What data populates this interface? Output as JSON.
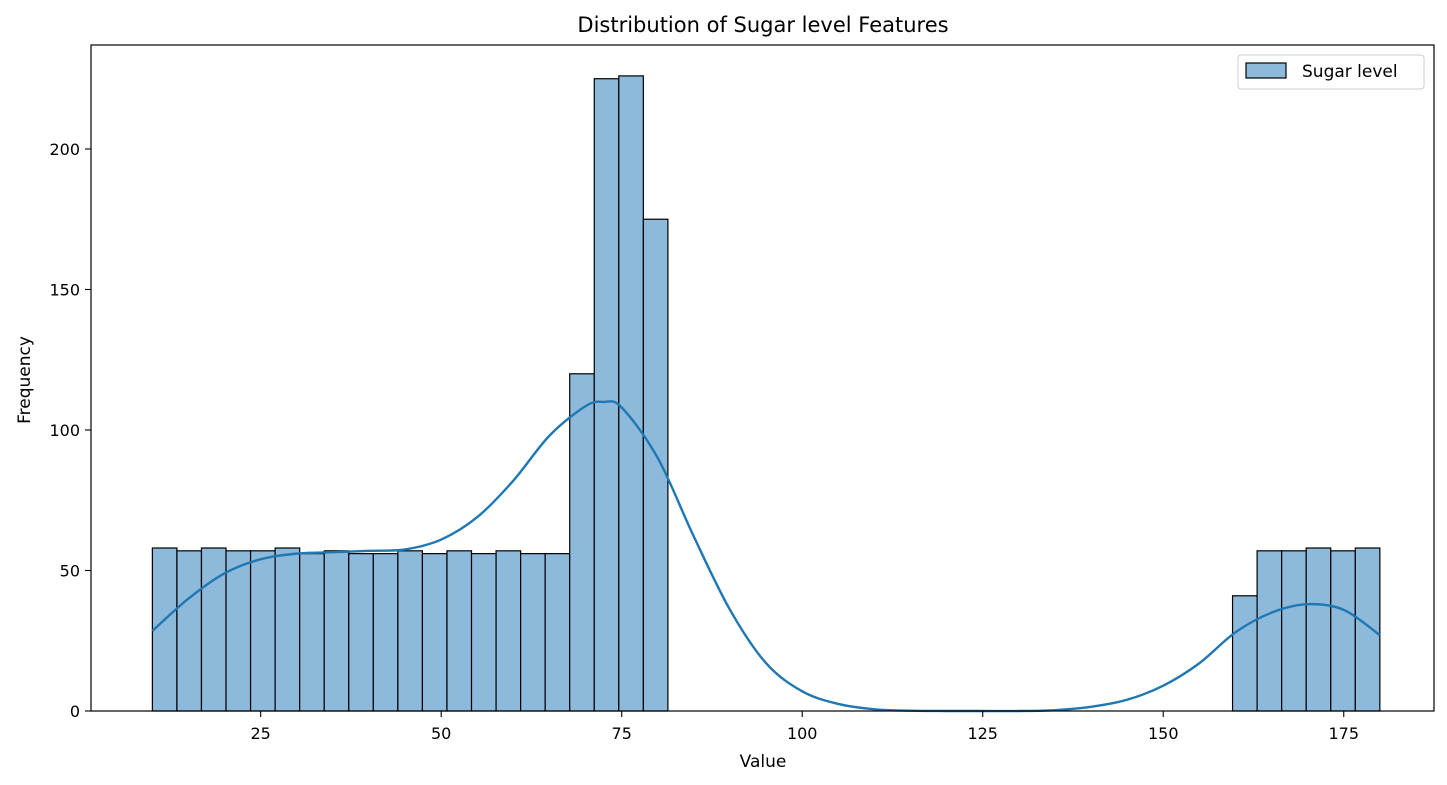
{
  "chart_data": {
    "type": "bar",
    "subtype": "histogram",
    "title": "Distribution of Sugar level Features",
    "xlabel": "Value",
    "ylabel": "Frequency",
    "xlim": [
      1.5,
      187.5
    ],
    "ylim": [
      0,
      237
    ],
    "xticks": [
      25,
      50,
      75,
      100,
      125,
      150,
      175
    ],
    "yticks": [
      0,
      50,
      100,
      150,
      200
    ],
    "grid": false,
    "legend_position": "top-right",
    "colors": {
      "bar_fill": "#8db9da",
      "bar_edge": "#000000",
      "kde_line": "#1f77b4"
    },
    "series": [
      {
        "name": "Sugar level",
        "bins": [
          {
            "x0": 10.0,
            "x1": 13.4,
            "count": 58
          },
          {
            "x0": 13.4,
            "x1": 16.8,
            "count": 57
          },
          {
            "x0": 16.8,
            "x1": 20.2,
            "count": 58
          },
          {
            "x0": 20.2,
            "x1": 23.6,
            "count": 57
          },
          {
            "x0": 23.6,
            "x1": 27.0,
            "count": 57
          },
          {
            "x0": 27.0,
            "x1": 30.4,
            "count": 58
          },
          {
            "x0": 30.4,
            "x1": 33.8,
            "count": 56
          },
          {
            "x0": 33.8,
            "x1": 37.2,
            "count": 57
          },
          {
            "x0": 37.2,
            "x1": 40.6,
            "count": 56
          },
          {
            "x0": 40.6,
            "x1": 44.0,
            "count": 56
          },
          {
            "x0": 44.0,
            "x1": 47.4,
            "count": 57
          },
          {
            "x0": 47.4,
            "x1": 50.8,
            "count": 56
          },
          {
            "x0": 50.8,
            "x1": 54.2,
            "count": 57
          },
          {
            "x0": 54.2,
            "x1": 57.6,
            "count": 56
          },
          {
            "x0": 57.6,
            "x1": 61.0,
            "count": 57
          },
          {
            "x0": 61.0,
            "x1": 64.4,
            "count": 56
          },
          {
            "x0": 64.4,
            "x1": 67.8,
            "count": 56
          },
          {
            "x0": 67.8,
            "x1": 71.2,
            "count": 120
          },
          {
            "x0": 71.2,
            "x1": 74.6,
            "count": 225
          },
          {
            "x0": 74.6,
            "x1": 78.0,
            "count": 226
          },
          {
            "x0": 78.0,
            "x1": 81.4,
            "count": 175
          },
          {
            "x0": 159.6,
            "x1": 163.0,
            "count": 41
          },
          {
            "x0": 163.0,
            "x1": 166.4,
            "count": 57
          },
          {
            "x0": 166.4,
            "x1": 169.8,
            "count": 57
          },
          {
            "x0": 169.8,
            "x1": 173.2,
            "count": 58
          },
          {
            "x0": 173.2,
            "x1": 176.6,
            "count": 57
          },
          {
            "x0": 176.6,
            "x1": 180.0,
            "count": 58
          }
        ],
        "kde": {
          "x": [
            10,
            15,
            20,
            25,
            30,
            35,
            40,
            45,
            50,
            55,
            60,
            65,
            70,
            72.5,
            75,
            80,
            85,
            90,
            95,
            100,
            105,
            110,
            115,
            120,
            125,
            130,
            135,
            140,
            145,
            150,
            155,
            160,
            165,
            170,
            175,
            180
          ],
          "y": [
            28.5,
            40,
            49,
            54,
            56,
            56.5,
            57,
            57.5,
            61,
            69,
            82,
            98,
            108.5,
            110,
            108,
            90,
            62,
            36,
            17,
            7,
            2.5,
            0.6,
            0.1,
            0,
            0,
            0,
            0.3,
            1.5,
            4,
            9,
            17,
            28,
            35,
            38,
            36,
            27
          ]
        }
      }
    ]
  }
}
